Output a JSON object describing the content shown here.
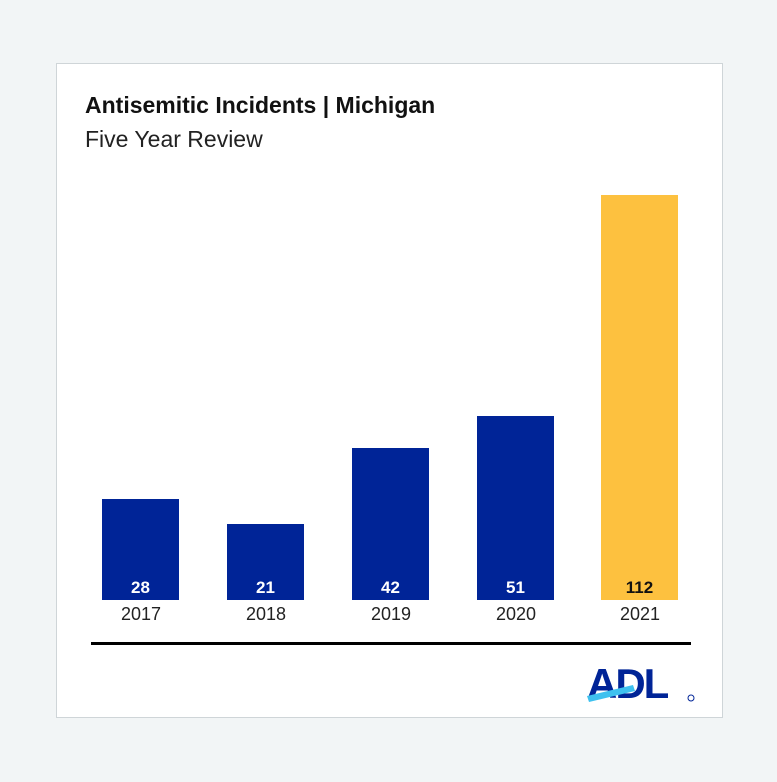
{
  "header": {
    "title": "Antisemitic Incidents | Michigan",
    "subtitle": "Five Year Review"
  },
  "logo": {
    "text": "ADL",
    "registered": "®"
  },
  "colors": {
    "bar_default": "#002497",
    "bar_highlight": "#fdc13f",
    "logo_blue": "#002497",
    "logo_accent": "#3ec1ef"
  },
  "chart_data": {
    "type": "bar",
    "title": "Antisemitic Incidents | Michigan",
    "subtitle": "Five Year Review",
    "categories": [
      "2017",
      "2018",
      "2019",
      "2020",
      "2021"
    ],
    "values": [
      28,
      21,
      42,
      51,
      112
    ],
    "labels": [
      "28",
      "21",
      "42",
      "51",
      "112"
    ],
    "highlight": "2021",
    "xlabel": "",
    "ylabel": "",
    "ylim": [
      0,
      112
    ],
    "grid": false,
    "legend": null
  }
}
